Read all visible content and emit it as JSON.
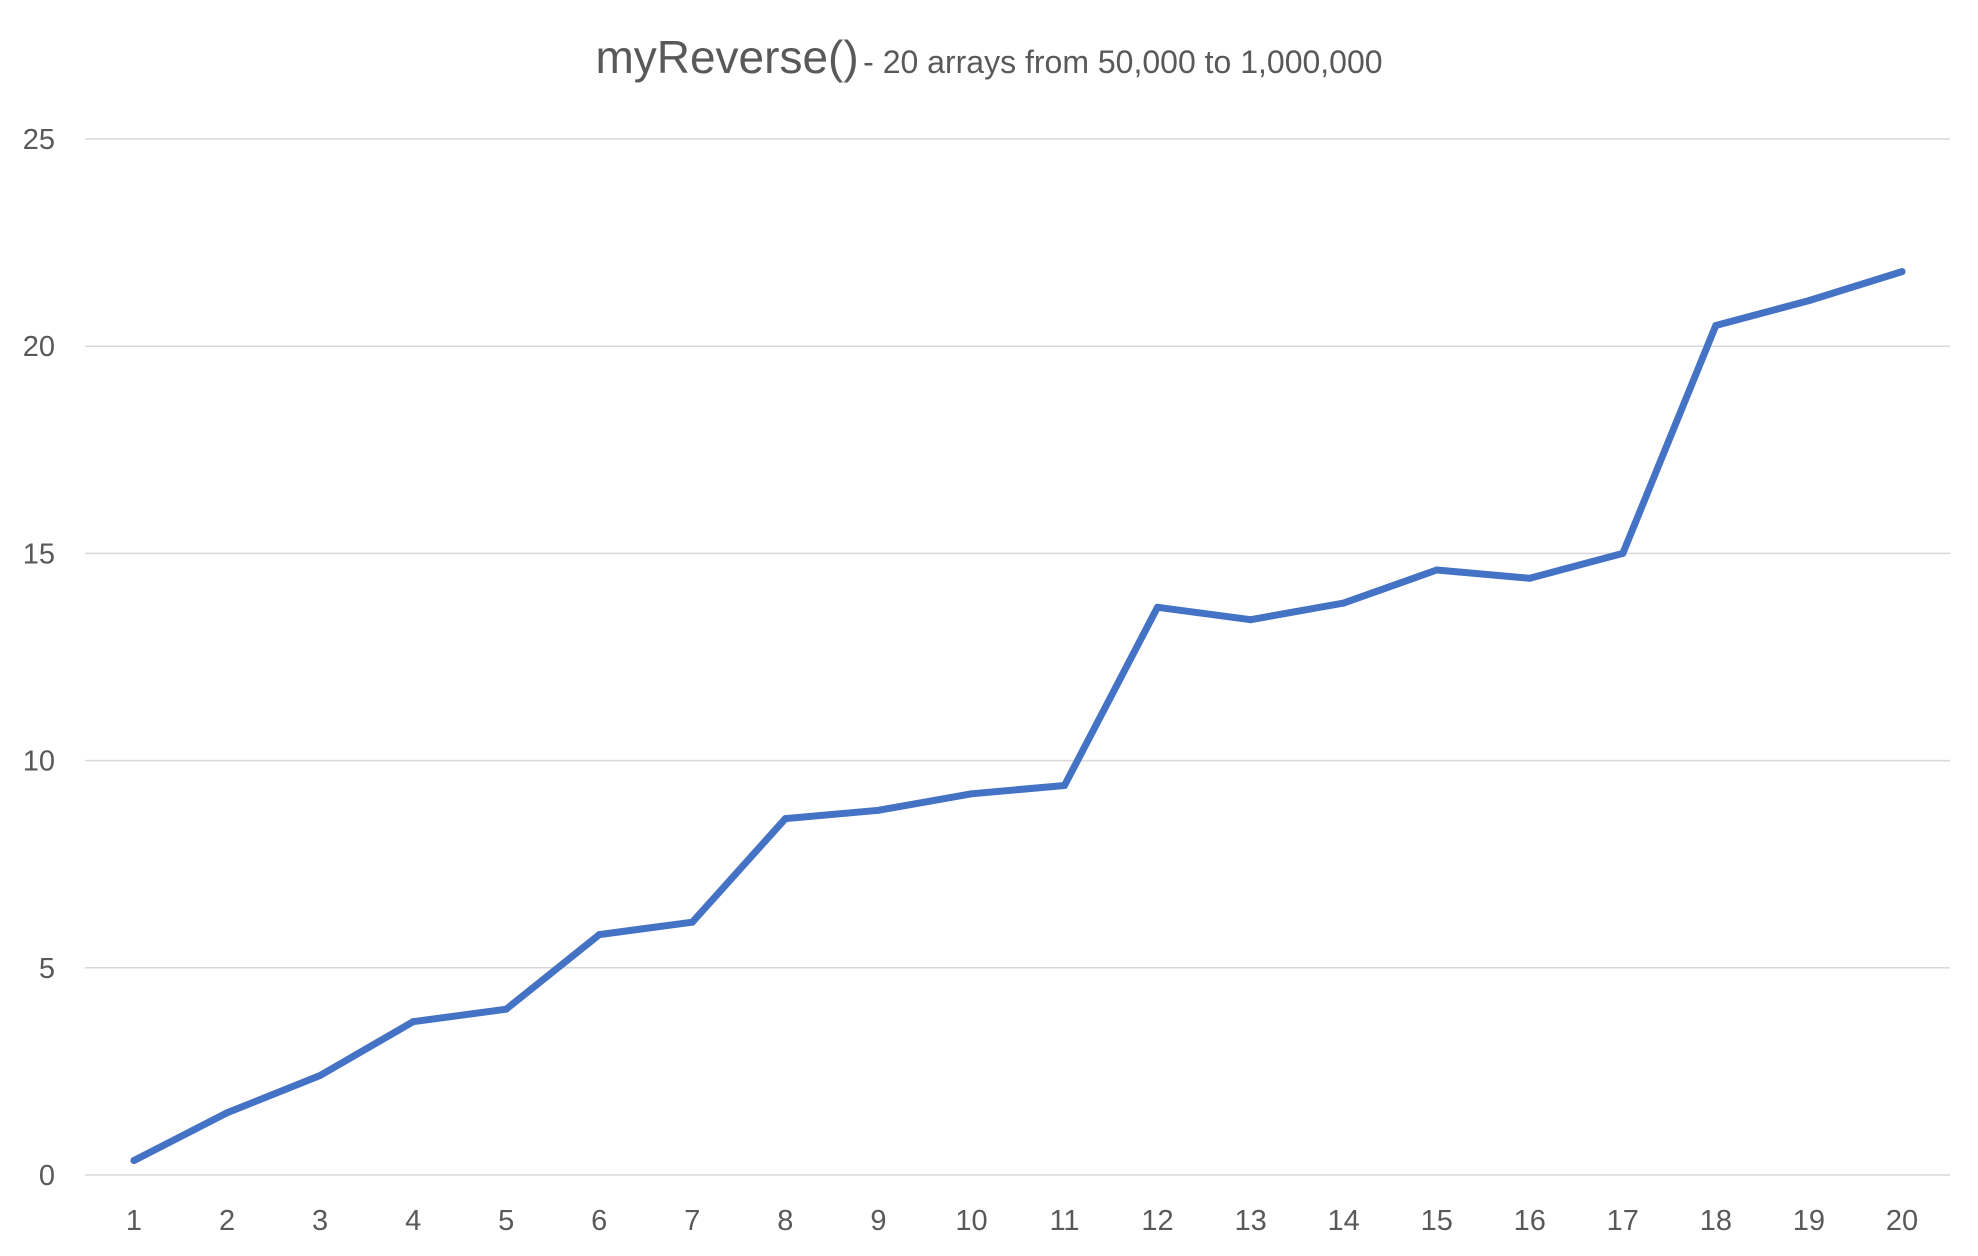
{
  "chart_data": {
    "type": "line",
    "title": "myReverse()",
    "subtitle": "- 20 arrays from 50,000 to 1,000,000",
    "xlabel": "",
    "ylabel": "",
    "categories": [
      "1",
      "2",
      "3",
      "4",
      "5",
      "6",
      "7",
      "8",
      "9",
      "10",
      "11",
      "12",
      "13",
      "14",
      "15",
      "16",
      "17",
      "18",
      "19",
      "20"
    ],
    "series": [
      {
        "color": "#4472c4",
        "values": [
          0.35,
          1.5,
          2.4,
          3.7,
          4.0,
          5.8,
          6.1,
          8.6,
          8.8,
          9.2,
          9.4,
          13.7,
          13.4,
          13.8,
          14.6,
          14.4,
          15.0,
          20.5,
          21.1,
          21.8
        ]
      }
    ],
    "ylim": [
      0,
      25
    ],
    "yticks": [
      0,
      5,
      10,
      15,
      20,
      25
    ],
    "grid": true,
    "legend": "none"
  }
}
